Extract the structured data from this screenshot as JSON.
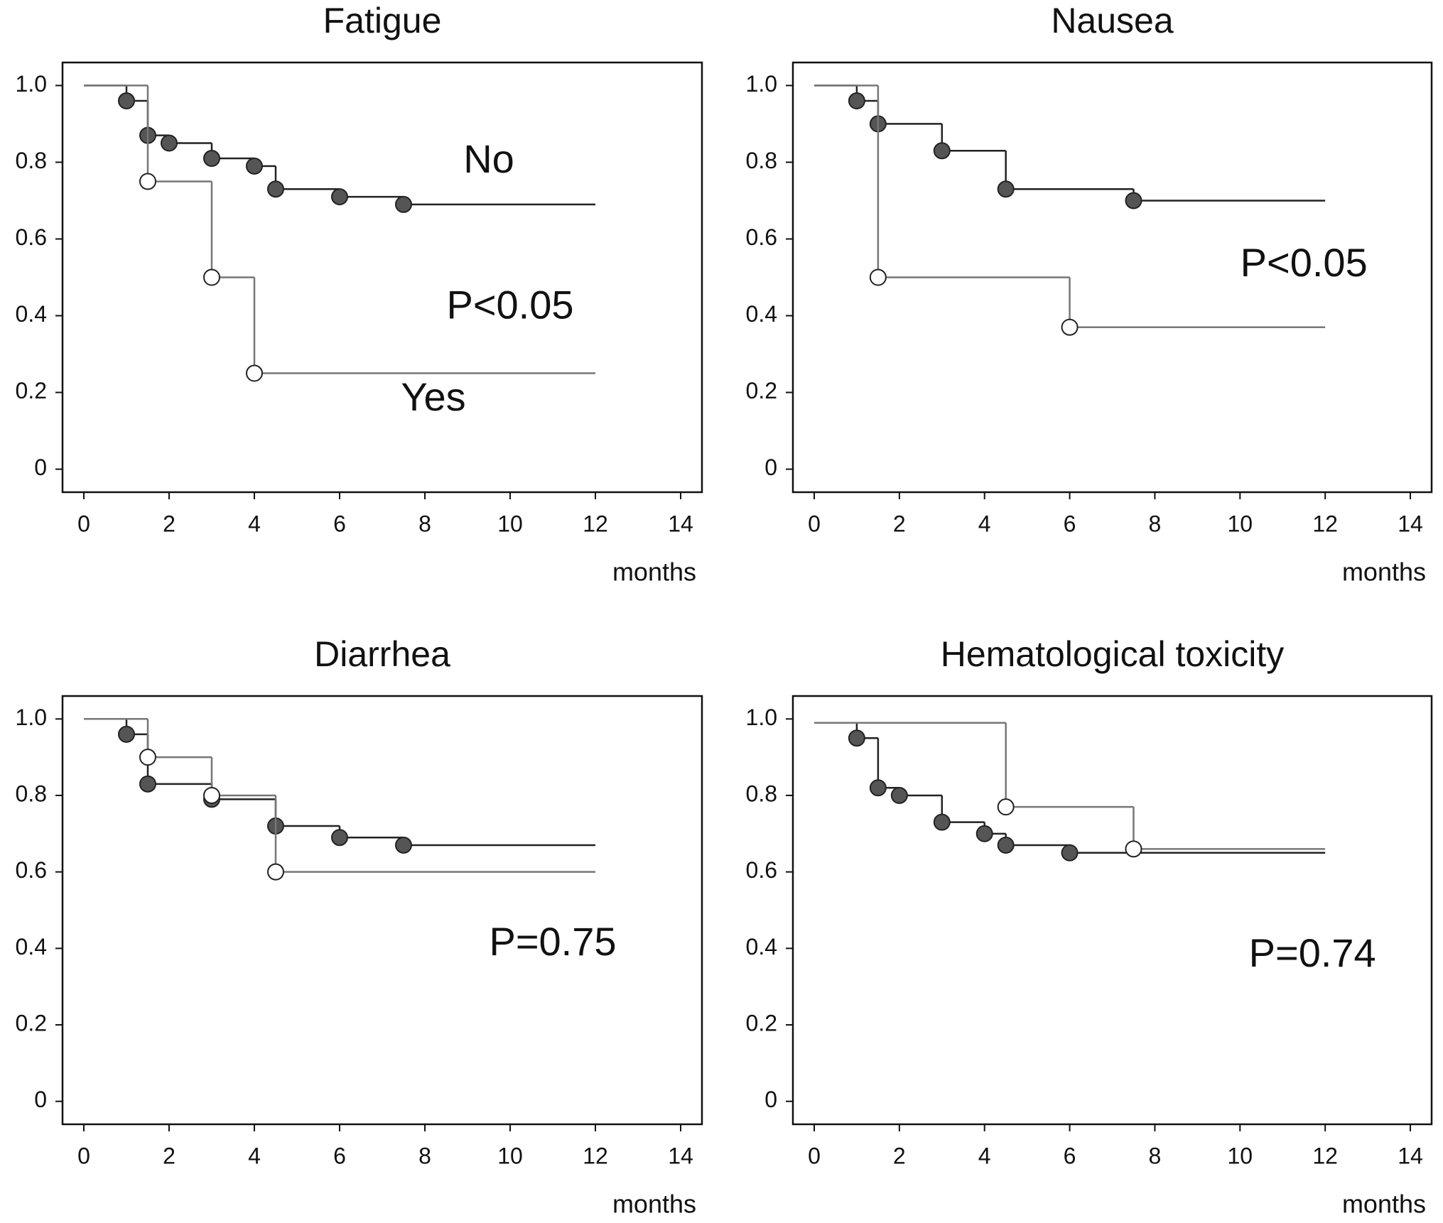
{
  "chart_data": [
    {
      "type": "step",
      "title": "Fatigue",
      "x_label": "months",
      "annotations": [
        "P<0.05"
      ],
      "xlim": [
        -0.5,
        14.5
      ],
      "ylim": [
        -0.06,
        1.06
      ],
      "xticks": [
        0,
        2,
        4,
        6,
        8,
        10,
        12,
        14
      ],
      "yticks": [
        0,
        0.2,
        0.4,
        0.6,
        0.8,
        {
          "value": 1,
          "label": "1.0"
        }
      ],
      "series": [
        {
          "name": "No",
          "color": "#222222",
          "marker_fill": "#555555",
          "x": [
            0,
            1,
            1.5,
            2,
            3,
            4,
            4.5,
            6,
            7.5,
            12
          ],
          "values": [
            1,
            0.96,
            0.87,
            0.85,
            0.81,
            0.79,
            0.73,
            0.71,
            0.69,
            0.69
          ]
        },
        {
          "name": "Yes",
          "color": "#777777",
          "marker_fill": "#ffffff",
          "x": [
            0,
            1.5,
            3,
            4,
            12
          ],
          "values": [
            1,
            0.75,
            0.5,
            0.25,
            0.25
          ]
        }
      ]
    },
    {
      "type": "step",
      "title": "Nausea",
      "x_label": "months",
      "annotations": [
        "P<0.05"
      ],
      "xlim": [
        -0.5,
        14.5
      ],
      "ylim": [
        -0.06,
        1.06
      ],
      "xticks": [
        0,
        2,
        4,
        6,
        8,
        10,
        12,
        14
      ],
      "yticks": [
        0,
        0.2,
        0.4,
        0.6,
        0.8,
        {
          "value": 1,
          "label": "1.0"
        }
      ],
      "series": [
        {
          "color": "#222222",
          "marker_fill": "#555555",
          "x": [
            0,
            1,
            1.5,
            3,
            4.5,
            7.5,
            12
          ],
          "values": [
            1,
            0.96,
            0.9,
            0.83,
            0.73,
            0.7,
            0.7
          ]
        },
        {
          "color": "#777777",
          "marker_fill": "#ffffff",
          "x": [
            0,
            1.5,
            6,
            12
          ],
          "values": [
            1,
            0.5,
            0.37,
            0.37
          ]
        }
      ]
    },
    {
      "type": "step",
      "title": "Diarrhea",
      "x_label": "months",
      "annotations": [
        "P=0.75"
      ],
      "xlim": [
        -0.5,
        14.5
      ],
      "ylim": [
        -0.06,
        1.06
      ],
      "xticks": [
        0,
        2,
        4,
        6,
        8,
        10,
        12,
        14
      ],
      "yticks": [
        0,
        0.2,
        0.4,
        0.6,
        0.8,
        {
          "value": 1,
          "label": "1.0"
        }
      ],
      "series": [
        {
          "color": "#222222",
          "marker_fill": "#555555",
          "x": [
            0,
            1,
            1.5,
            3,
            4.5,
            6,
            7.5,
            12
          ],
          "values": [
            1,
            0.96,
            0.83,
            0.79,
            0.72,
            0.69,
            0.67,
            0.67
          ]
        },
        {
          "color": "#777777",
          "marker_fill": "#ffffff",
          "x": [
            0,
            1.5,
            3,
            4.5,
            12
          ],
          "values": [
            1,
            0.9,
            0.8,
            0.6,
            0.6
          ]
        }
      ]
    },
    {
      "type": "step",
      "title": "Hematological  toxicity",
      "x_label": "months",
      "annotations": [
        "P=0.74"
      ],
      "xlim": [
        -0.5,
        14.5
      ],
      "ylim": [
        -0.06,
        1.06
      ],
      "xticks": [
        0,
        2,
        4,
        6,
        8,
        10,
        12,
        14
      ],
      "yticks": [
        0,
        0.2,
        0.4,
        0.6,
        0.8,
        {
          "value": 1,
          "label": "1.0"
        }
      ],
      "series": [
        {
          "color": "#222222",
          "marker_fill": "#555555",
          "x": [
            0,
            1,
            1.5,
            2,
            3,
            4,
            4.5,
            6,
            12
          ],
          "values": [
            0.99,
            0.95,
            0.82,
            0.8,
            0.73,
            0.7,
            0.67,
            0.65,
            0.65
          ]
        },
        {
          "color": "#777777",
          "marker_fill": "#ffffff",
          "x": [
            0,
            4.5,
            7.5,
            12
          ],
          "values": [
            0.99,
            0.77,
            0.66,
            0.66
          ]
        }
      ]
    }
  ]
}
